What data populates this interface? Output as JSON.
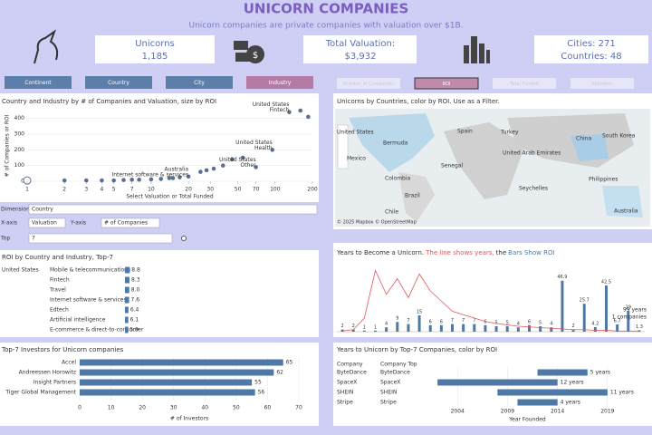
{
  "header": {
    "title": "UNICORN COMPANIES",
    "subtitle": "Unicorn companies are private companies with valuation over $1B."
  },
  "kpis": {
    "unicorns_label": "Unicorns",
    "unicorns": "1,185",
    "valuation_label": "Total Valuation:",
    "valuation": "$3,932",
    "cities": "Cities: 271",
    "countries": "Countries: 48"
  },
  "dimension_tabs": [
    "Continent",
    "Country",
    "City",
    "Industry"
  ],
  "active_dimension": 3,
  "measure_tabs": [
    "Number of Companies",
    "ROI",
    "Total Funded",
    "Valuation"
  ],
  "active_measure": 1,
  "controls": {
    "dimension_label": "Dimension",
    "dimension": "Country",
    "x_label": "X-axis",
    "x": "Valuation",
    "y_label": "Y-axis",
    "y": "# of Companies",
    "top_label": "Top",
    "top": "7"
  },
  "map": {
    "title": "Unicorns by Countries, color by ROI. Use as a Filter.",
    "labels": [
      "United States",
      "Bermuda",
      "Spain",
      "Turkey",
      "China",
      "South Korea",
      "Mexico",
      "United Arab Emirates",
      "Senegal",
      "Colombia",
      "Brazil",
      "Seychelles",
      "Philippines",
      "Chile",
      "Australia"
    ],
    "attribution": "© 2025 Mapbox © OpenStreetMap"
  },
  "chart_data": [
    {
      "type": "scatter",
      "title": "Country and Industry by # of Companies and Valuation, size by ROI",
      "x_label": "Select Valuation or Total Funded",
      "y_label": "# of Companies or ROI",
      "log_x": true,
      "color": "#5a6f8f",
      "x": [
        1,
        2,
        3,
        4,
        5,
        6,
        7,
        8,
        10,
        12,
        14,
        15,
        17,
        20,
        25,
        28,
        32,
        38,
        45,
        55,
        70,
        95,
        130,
        160,
        185
      ],
      "y": [
        5,
        5,
        5,
        5,
        5,
        8,
        10,
        10,
        12,
        15,
        20,
        20,
        25,
        30,
        60,
        70,
        80,
        100,
        140,
        150,
        90,
        200,
        440,
        450,
        410
      ],
      "point_labels": [
        null,
        null,
        null,
        null,
        null,
        null,
        null,
        null,
        null,
        null,
        null,
        null,
        null,
        [
          "Australia",
          "Internet software & services"
        ],
        null,
        null,
        null,
        null,
        null,
        null,
        [
          "United States",
          "Other"
        ],
        [
          "United States",
          "Health"
        ],
        [
          "United States",
          "Fintech"
        ],
        null,
        null
      ],
      "xlim": [
        1,
        200
      ],
      "xticks": [
        1,
        2,
        3,
        4,
        5,
        7,
        10,
        20,
        30,
        50,
        70,
        100,
        200
      ],
      "ylim": [
        0,
        450
      ],
      "yticks": [
        0,
        100,
        200,
        300,
        400
      ]
    },
    {
      "type": "hbar",
      "title": "ROI by Country and Industry, Top-7",
      "group": "United States",
      "color": "#4e79a7",
      "categories": [
        "Mobile & telecommunications",
        "Fintech",
        "Travel",
        "Internet software & services",
        "Edtech",
        "Artificial intelligence",
        "E-commerce & direct-to-consumer"
      ],
      "values": [
        8.8,
        8.3,
        8.0,
        7.6,
        6.4,
        6.1,
        5.9
      ],
      "value_labels": [
        "8.8",
        "8.3",
        "8.0",
        "7.6",
        "6.4",
        "6.1",
        "5.9"
      ]
    },
    {
      "type": "combo",
      "title_parts": [
        "Years to Become a Unicorn.",
        "The line shows years,",
        "the",
        "Bars Show ROI"
      ],
      "title_colors": [
        "#333333",
        "#e15759",
        "#333333",
        "#4e79a7"
      ],
      "line_color": "#e15759",
      "bar_color": "#4e79a7",
      "line_values": [
        1,
        3,
        20,
        90,
        55,
        78,
        50,
        85,
        60,
        45,
        30,
        25,
        20,
        15,
        12,
        10,
        8,
        7,
        6,
        5,
        4,
        3,
        3,
        2,
        2,
        1,
        1,
        1
      ],
      "bar_values": [
        2,
        2,
        1,
        1,
        4,
        9,
        7,
        15,
        6,
        6,
        7,
        7,
        7,
        6,
        5,
        5,
        4,
        6,
        5,
        4,
        46.9,
        2,
        25.7,
        4.2,
        42.5,
        6.7,
        19,
        1.3
      ],
      "annotation": [
        "99 years",
        "1 companies"
      ]
    },
    {
      "type": "hbar_axis",
      "title": "Top-7 Investors for Unicorn companies",
      "color": "#4e79a7",
      "categories": [
        "Accel",
        "Andreessen Horowitz",
        "Insight Partners",
        "Tiger Global Management"
      ],
      "values": [
        65,
        62,
        55,
        56
      ],
      "xlim": [
        0,
        70
      ],
      "xticks": [
        0,
        10,
        20,
        30,
        40,
        50,
        60,
        70
      ],
      "x_label": "# of Investors",
      "grid": true
    },
    {
      "type": "gantt",
      "title": "Years to Unicorn by Top-7 Companies, color by ROI",
      "color": "#4e79a7",
      "columns": [
        "Company",
        "Company Top"
      ],
      "categories": [
        "ByteDance",
        "SpaceX",
        "SHEIN",
        "Stripe"
      ],
      "founded": [
        2012,
        2002,
        2008,
        2010
      ],
      "values": [
        5,
        12,
        11,
        4
      ],
      "value_labels": [
        "5 years",
        "12 years",
        "11 years",
        "4 years"
      ],
      "xlim": [
        1999,
        2023
      ],
      "xticks": [
        2004,
        2009,
        2014,
        2019
      ],
      "x_label": "Year Founded"
    }
  ]
}
